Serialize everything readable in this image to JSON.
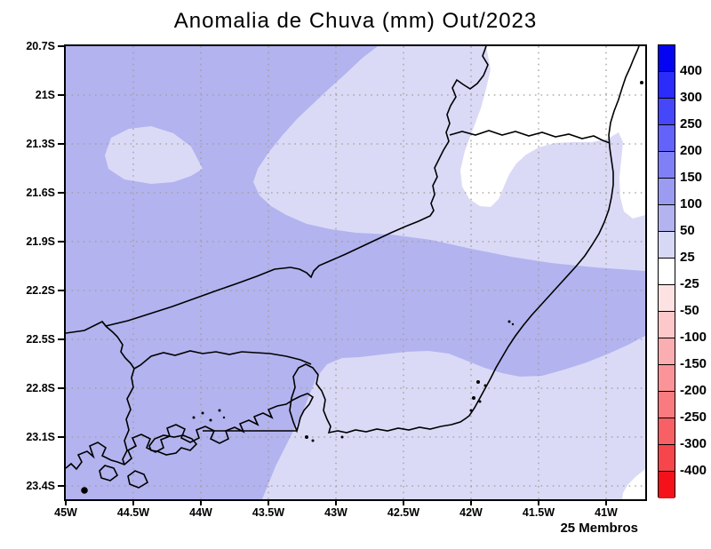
{
  "title": "Anomalia de Chuva (mm) Out/2023",
  "footer": {
    "members": "25 Membros"
  },
  "axes": {
    "lat_labels": [
      "20.7S",
      "21S",
      "21.3S",
      "21.6S",
      "21.9S",
      "22.2S",
      "22.5S",
      "22.8S",
      "23.1S",
      "23.4S"
    ],
    "lon_labels": [
      "45W",
      "44.5W",
      "44W",
      "43.5W",
      "43W",
      "42.5W",
      "42W",
      "41.5W",
      "41W"
    ]
  },
  "colorbar": {
    "tick_labels": [
      "400",
      "300",
      "250",
      "200",
      "150",
      "100",
      "50",
      "25",
      "-25",
      "-50",
      "-100",
      "-150",
      "-200",
      "-250",
      "-300",
      "-400"
    ],
    "colors": [
      "#0404f2",
      "#2b2bfa",
      "#4747fa",
      "#6363fa",
      "#8080f6",
      "#9b9bf2",
      "#b3b3ef",
      "#d7d7f6",
      "#ffffff",
      "#fde2e3",
      "#fcc8ca",
      "#fbaeb1",
      "#fa9498",
      "#f97a7f",
      "#f76065",
      "#f6464c",
      "#f5111a"
    ]
  },
  "map_colors": {
    "band_50_100": "#b3b3ef",
    "band_25_50": "#dadaf7",
    "band_near_zero": "#ffffff",
    "gridline": "#a39d92",
    "outline": "#000000"
  },
  "chart_data": {
    "type": "heatmap",
    "subtype": "filled-contour-anomaly-map",
    "title": "Anomalia de Chuva (mm) Out/2023",
    "units": "mm",
    "period": "Out/2023",
    "ensemble": "25 Membros",
    "lon_range_deg_west": [
      45.0,
      40.7
    ],
    "lat_range_deg_south": [
      20.7,
      23.48
    ],
    "lon_ticks": [
      "45W",
      "44.5W",
      "44W",
      "43.5W",
      "43W",
      "42.5W",
      "42W",
      "41.5W",
      "41W"
    ],
    "lat_ticks": [
      "20.7S",
      "21S",
      "21.3S",
      "21.6S",
      "21.9S",
      "22.2S",
      "22.5S",
      "22.8S",
      "23.1S",
      "23.4S"
    ],
    "contour_levels": [
      -400,
      -300,
      -250,
      -200,
      -150,
      -100,
      -50,
      -25,
      25,
      50,
      100,
      150,
      200,
      250,
      300,
      400
    ],
    "colorbar_range": [
      -400,
      400
    ],
    "grid": "dotted, every 0.5 deg lon and 0.3 deg lat",
    "legend_position": "right vertical colorbar",
    "overlay": "coastline and state borders of southeast Brazil (Rio de Janeiro region)",
    "regions": [
      {
        "area": "most of domain, west and central portion",
        "anomaly_mm": "+50 to +100"
      },
      {
        "area": "northeast corner, north of ~21.6S and east of ~42.3W",
        "anomaly_mm": "-25 to +25 (near zero)"
      },
      {
        "area": "band surrounding the northeast near-zero region",
        "anomaly_mm": "+25 to +50"
      },
      {
        "area": "small patch near 44.4W, 21.3S",
        "anomaly_mm": "+25 to +50"
      },
      {
        "area": "central tongue extending east to coast ~22.3-22.6S",
        "anomaly_mm": "+50 to +100"
      },
      {
        "area": "southeast / offshore area south of ~22.8S, east of ~43.2W",
        "anomaly_mm": "+25 to +50"
      },
      {
        "area": "small patch at bottom-right corner near 40.8W, 23.4S",
        "anomaly_mm": "-25 to +25 (near zero)"
      }
    ]
  }
}
